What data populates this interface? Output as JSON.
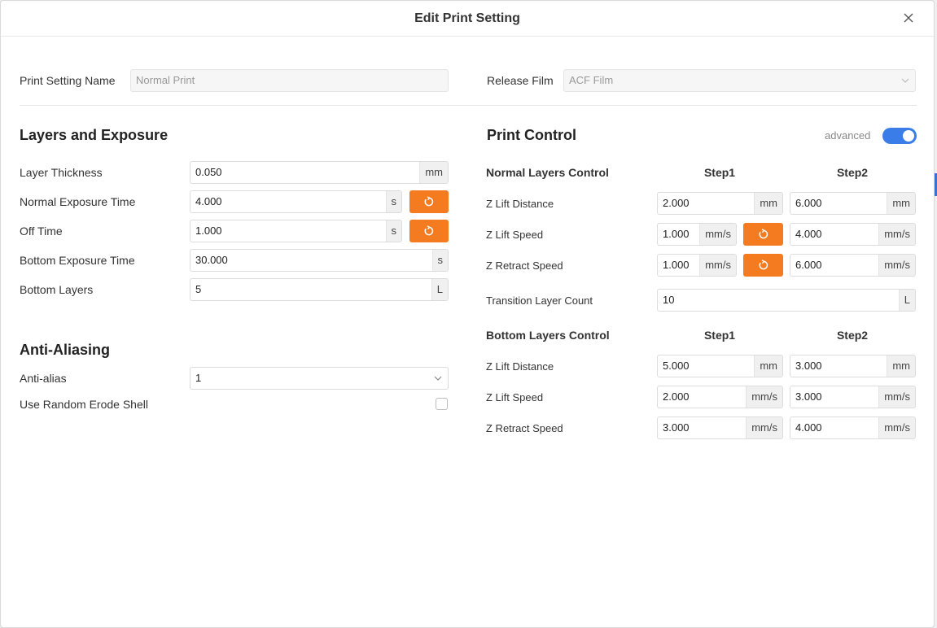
{
  "dialog": {
    "title": "Edit Print Setting"
  },
  "top": {
    "print_setting_name_label": "Print Setting Name",
    "print_setting_name_value": "Normal Print",
    "release_film_label": "Release Film",
    "release_film_value": "ACF Film"
  },
  "layers": {
    "heading": "Layers and Exposure",
    "layer_thickness": {
      "label": "Layer Thickness",
      "value": "0.050",
      "unit": "mm"
    },
    "normal_exposure": {
      "label": "Normal Exposure Time",
      "value": "4.000",
      "unit": "s"
    },
    "off_time": {
      "label": "Off Time",
      "value": "1.000",
      "unit": "s"
    },
    "bottom_exposure": {
      "label": "Bottom Exposure Time",
      "value": "30.000",
      "unit": "s"
    },
    "bottom_layers": {
      "label": "Bottom Layers",
      "value": "5",
      "unit": "L"
    }
  },
  "antialias": {
    "heading": "Anti-Aliasing",
    "anti_alias_label": "Anti-alias",
    "anti_alias_value": "1",
    "random_erode_label": "Use Random Erode Shell"
  },
  "print_control": {
    "heading": "Print Control",
    "advanced_label": "advanced",
    "advanced_on": true,
    "normal": {
      "heading": "Normal Layers Control",
      "step1": "Step1",
      "step2": "Step2",
      "z_lift_distance": {
        "label": "Z Lift Distance",
        "s1": "2.000",
        "s1_unit": "mm",
        "s2": "6.000",
        "s2_unit": "mm"
      },
      "z_lift_speed": {
        "label": "Z Lift Speed",
        "s1": "1.000",
        "s1_unit": "mm/s",
        "s2": "4.000",
        "s2_unit": "mm/s"
      },
      "z_retract_speed": {
        "label": "Z Retract Speed",
        "s1": "1.000",
        "s1_unit": "mm/s",
        "s2": "6.000",
        "s2_unit": "mm/s"
      }
    },
    "transition": {
      "label": "Transition Layer Count",
      "value": "10",
      "unit": "L"
    },
    "bottom": {
      "heading": "Bottom Layers Control",
      "step1": "Step1",
      "step2": "Step2",
      "z_lift_distance": {
        "label": "Z Lift Distance",
        "s1": "5.000",
        "s1_unit": "mm",
        "s2": "3.000",
        "s2_unit": "mm"
      },
      "z_lift_speed": {
        "label": "Z Lift Speed",
        "s1": "2.000",
        "s1_unit": "mm/s",
        "s2": "3.000",
        "s2_unit": "mm/s"
      },
      "z_retract_speed": {
        "label": "Z Retract Speed",
        "s1": "3.000",
        "s1_unit": "mm/s",
        "s2": "4.000",
        "s2_unit": "mm/s"
      }
    }
  },
  "colors": {
    "accent_orange": "#f47b20",
    "toggle_blue": "#3b7de8"
  }
}
